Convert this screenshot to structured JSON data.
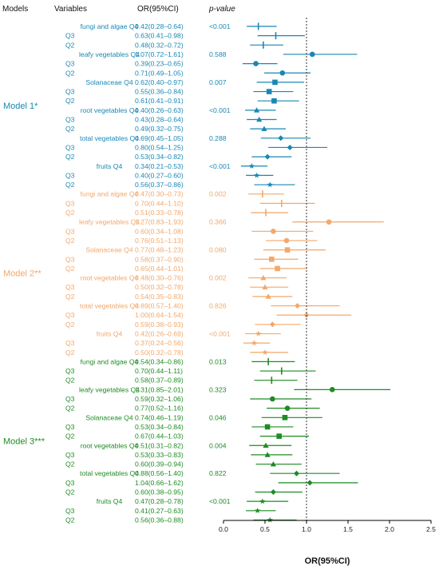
{
  "headers": {
    "models": "Models",
    "variables": "Variables",
    "or": "OR(95%CI)",
    "p": "p-value"
  },
  "chart_data": {
    "type": "forest",
    "xlabel": "OR(95%CI)",
    "xlim": [
      0,
      2.5
    ],
    "xticks": [
      "0.0",
      "0.5",
      "1.0",
      "1.5",
      "2.0",
      "2.5"
    ],
    "reference_line": 1.0,
    "models": [
      {
        "label": "Model 1*",
        "color": "#1a87b3",
        "rows": [
          {
            "label": "fungi and algae Q4",
            "or_text": "0.42(0.28–0.64)",
            "p": "<0.001",
            "or": 0.42,
            "lo": 0.28,
            "hi": 0.64,
            "marker": "line"
          },
          {
            "label": "Q3",
            "or_text": "0.63(0.41–0.98)",
            "p": "",
            "or": 0.63,
            "lo": 0.41,
            "hi": 0.98,
            "marker": "line"
          },
          {
            "label": "Q2",
            "or_text": "0.48(0.32–0.72)",
            "p": "",
            "or": 0.48,
            "lo": 0.32,
            "hi": 0.72,
            "marker": "line"
          },
          {
            "label": "leafy vegetables Q4",
            "or_text": "1.07(0.72–1.61)",
            "p": "0.588",
            "or": 1.07,
            "lo": 0.72,
            "hi": 1.61,
            "marker": "circle"
          },
          {
            "label": "Q3",
            "or_text": "0.39(0.23–0.65)",
            "p": "",
            "or": 0.39,
            "lo": 0.23,
            "hi": 0.65,
            "marker": "circle"
          },
          {
            "label": "Q2",
            "or_text": "0.71(0.49–1.05)",
            "p": "",
            "or": 0.71,
            "lo": 0.49,
            "hi": 1.05,
            "marker": "circle"
          },
          {
            "label": "Solanaceae Q4",
            "or_text": "0.62(0.40–0.97)",
            "p": "0.007",
            "or": 0.62,
            "lo": 0.4,
            "hi": 0.97,
            "marker": "square"
          },
          {
            "label": "Q3",
            "or_text": "0.55(0.36–0.84)",
            "p": "",
            "or": 0.55,
            "lo": 0.36,
            "hi": 0.84,
            "marker": "square"
          },
          {
            "label": "Q2",
            "or_text": "0.61(0.41–0.91)",
            "p": "",
            "or": 0.61,
            "lo": 0.41,
            "hi": 0.91,
            "marker": "square"
          },
          {
            "label": "root vegetables Q4",
            "or_text": "0.40(0.26–0.63)",
            "p": "<0.001",
            "or": 0.4,
            "lo": 0.26,
            "hi": 0.63,
            "marker": "triangle"
          },
          {
            "label": "Q3",
            "or_text": "0.43(0.28–0.64)",
            "p": "",
            "or": 0.43,
            "lo": 0.28,
            "hi": 0.64,
            "marker": "triangle"
          },
          {
            "label": "Q2",
            "or_text": "0.49(0.32–0.75)",
            "p": "",
            "or": 0.49,
            "lo": 0.32,
            "hi": 0.75,
            "marker": "triangle"
          },
          {
            "label": "total vegetables Q4",
            "or_text": "0.69(0.45–1.05)",
            "p": "0.288",
            "or": 0.69,
            "lo": 0.45,
            "hi": 1.05,
            "marker": "diamond"
          },
          {
            "label": "Q3",
            "or_text": "0.80(0.54–1.25)",
            "p": "",
            "or": 0.8,
            "lo": 0.54,
            "hi": 1.25,
            "marker": "diamond"
          },
          {
            "label": "Q2",
            "or_text": "0.53(0.34–0.82)",
            "p": "",
            "or": 0.53,
            "lo": 0.34,
            "hi": 0.82,
            "marker": "diamond"
          },
          {
            "label": "fruits Q4",
            "or_text": "0.34(0.21–0.53)",
            "p": "<0.001",
            "or": 0.34,
            "lo": 0.21,
            "hi": 0.53,
            "marker": "star"
          },
          {
            "label": "Q3",
            "or_text": "0.40(0.27–0.60)",
            "p": "",
            "or": 0.4,
            "lo": 0.27,
            "hi": 0.6,
            "marker": "star"
          },
          {
            "label": "Q2",
            "or_text": "0.56(0.37–0.86)",
            "p": "",
            "or": 0.56,
            "lo": 0.37,
            "hi": 0.86,
            "marker": "star"
          }
        ]
      },
      {
        "label": "Model 2**",
        "color": "#f2a86b",
        "rows": [
          {
            "label": "fungi and algae Q4",
            "or_text": "0.47(0.30–0.73)",
            "p": "0.002",
            "or": 0.47,
            "lo": 0.3,
            "hi": 0.73,
            "marker": "line"
          },
          {
            "label": "Q3",
            "or_text": "0.70(0.44–1.10)",
            "p": "",
            "or": 0.7,
            "lo": 0.44,
            "hi": 1.1,
            "marker": "line"
          },
          {
            "label": "Q2",
            "or_text": "0.51(0.33–0.78)",
            "p": "",
            "or": 0.51,
            "lo": 0.33,
            "hi": 0.78,
            "marker": "line"
          },
          {
            "label": "leafy vegetables Q4",
            "or_text": "1.27(0.83–1.93)",
            "p": "0.366",
            "or": 1.27,
            "lo": 0.83,
            "hi": 1.93,
            "marker": "circle"
          },
          {
            "label": "Q3",
            "or_text": "0.60(0.34–1.08)",
            "p": "",
            "or": 0.6,
            "lo": 0.34,
            "hi": 1.08,
            "marker": "circle"
          },
          {
            "label": "Q2",
            "or_text": "0.76(0.51–1.13)",
            "p": "",
            "or": 0.76,
            "lo": 0.51,
            "hi": 1.13,
            "marker": "circle"
          },
          {
            "label": "Solanaceae Q4",
            "or_text": "0.77(0.48–1.23)",
            "p": "0.080",
            "or": 0.77,
            "lo": 0.48,
            "hi": 1.23,
            "marker": "square"
          },
          {
            "label": "Q3",
            "or_text": "0.58(0.37–0.90)",
            "p": "",
            "or": 0.58,
            "lo": 0.37,
            "hi": 0.9,
            "marker": "square"
          },
          {
            "label": "Q2",
            "or_text": "0.65(0.44–1.01)",
            "p": "",
            "or": 0.65,
            "lo": 0.44,
            "hi": 1.01,
            "marker": "square"
          },
          {
            "label": "root vegetables Q4",
            "or_text": "0.48(0.30–0.76)",
            "p": "0.002",
            "or": 0.48,
            "lo": 0.3,
            "hi": 0.76,
            "marker": "triangle"
          },
          {
            "label": "Q3",
            "or_text": "0.50(0.32–0.78)",
            "p": "",
            "or": 0.5,
            "lo": 0.32,
            "hi": 0.78,
            "marker": "triangle"
          },
          {
            "label": "Q2",
            "or_text": "0.54(0.35–0.83)",
            "p": "",
            "or": 0.54,
            "lo": 0.35,
            "hi": 0.83,
            "marker": "triangle"
          },
          {
            "label": "total vegetables Q4",
            "or_text": "0.89(0.57–1.40)",
            "p": "0.826",
            "or": 0.89,
            "lo": 0.57,
            "hi": 1.4,
            "marker": "diamond"
          },
          {
            "label": "Q3",
            "or_text": "1.00(0.64–1.54)",
            "p": "",
            "or": 1.0,
            "lo": 0.64,
            "hi": 1.54,
            "marker": "diamond"
          },
          {
            "label": "Q2",
            "or_text": "0.59(0.38–0.93)",
            "p": "",
            "or": 0.59,
            "lo": 0.38,
            "hi": 0.93,
            "marker": "diamond"
          },
          {
            "label": "fruits Q4",
            "or_text": "0.42(0.26–0.69)",
            "p": "<0.001",
            "or": 0.42,
            "lo": 0.26,
            "hi": 0.69,
            "marker": "star"
          },
          {
            "label": "Q3",
            "or_text": "0.37(0.24–0.56)",
            "p": "",
            "or": 0.37,
            "lo": 0.24,
            "hi": 0.56,
            "marker": "star"
          },
          {
            "label": "Q2",
            "or_text": "0.50(0.32–0.78)",
            "p": "",
            "or": 0.5,
            "lo": 0.32,
            "hi": 0.78,
            "marker": "star"
          }
        ]
      },
      {
        "label": "Model 3***",
        "color": "#1e8c23",
        "rows": [
          {
            "label": "fungi and algae Q4",
            "or_text": "0.54(0.34–0.86)",
            "p": "0.013",
            "or": 0.54,
            "lo": 0.34,
            "hi": 0.86,
            "marker": "line"
          },
          {
            "label": "Q3",
            "or_text": "0.70(0.44–1.11)",
            "p": "",
            "or": 0.7,
            "lo": 0.44,
            "hi": 1.11,
            "marker": "line"
          },
          {
            "label": "Q2",
            "or_text": "0.58(0.37–0.89)",
            "p": "",
            "or": 0.58,
            "lo": 0.37,
            "hi": 0.89,
            "marker": "line"
          },
          {
            "label": "leafy vegetables Q4",
            "or_text": "1.31(0.85–2.01)",
            "p": "0.323",
            "or": 1.31,
            "lo": 0.85,
            "hi": 2.01,
            "marker": "circle"
          },
          {
            "label": "Q3",
            "or_text": "0.59(0.32–1.06)",
            "p": "",
            "or": 0.59,
            "lo": 0.32,
            "hi": 1.06,
            "marker": "circle"
          },
          {
            "label": "Q2",
            "or_text": "0.77(0.52–1.16)",
            "p": "",
            "or": 0.77,
            "lo": 0.52,
            "hi": 1.16,
            "marker": "circle"
          },
          {
            "label": "Solanaceae Q4",
            "or_text": "0.74(0.46–1.19)",
            "p": "0.046",
            "or": 0.74,
            "lo": 0.46,
            "hi": 1.19,
            "marker": "square"
          },
          {
            "label": "Q3",
            "or_text": "0.53(0.34–0.84)",
            "p": "",
            "or": 0.53,
            "lo": 0.34,
            "hi": 0.84,
            "marker": "square"
          },
          {
            "label": "Q2",
            "or_text": "0.67(0.44–1.03)",
            "p": "",
            "or": 0.67,
            "lo": 0.44,
            "hi": 1.03,
            "marker": "square"
          },
          {
            "label": "root vegetables Q4",
            "or_text": "0.51(0.31–0.82)",
            "p": "0.004",
            "or": 0.51,
            "lo": 0.31,
            "hi": 0.82,
            "marker": "triangle"
          },
          {
            "label": "Q3",
            "or_text": "0.53(0.33–0.83)",
            "p": "",
            "or": 0.53,
            "lo": 0.33,
            "hi": 0.83,
            "marker": "triangle"
          },
          {
            "label": "Q2",
            "or_text": "0.60(0.39–0.94)",
            "p": "",
            "or": 0.6,
            "lo": 0.39,
            "hi": 0.94,
            "marker": "triangle"
          },
          {
            "label": "total vegetables Q4",
            "or_text": "0.88(0.56–1.40)",
            "p": "0.822",
            "or": 0.88,
            "lo": 0.56,
            "hi": 1.4,
            "marker": "diamond"
          },
          {
            "label": "Q3",
            "or_text": "1.04(0.66–1.62)",
            "p": "",
            "or": 1.04,
            "lo": 0.66,
            "hi": 1.62,
            "marker": "diamond"
          },
          {
            "label": "Q2",
            "or_text": "0.60(0.38–0.95)",
            "p": "",
            "or": 0.6,
            "lo": 0.38,
            "hi": 0.95,
            "marker": "diamond"
          },
          {
            "label": "fruits Q4",
            "or_text": "0.47(0.28–0.78)",
            "p": "<0.001",
            "or": 0.47,
            "lo": 0.28,
            "hi": 0.78,
            "marker": "star"
          },
          {
            "label": "Q3",
            "or_text": "0.41(0.27–0.63)",
            "p": "",
            "or": 0.41,
            "lo": 0.27,
            "hi": 0.63,
            "marker": "star"
          },
          {
            "label": "Q2",
            "or_text": "0.56(0.36–0.88)",
            "p": "",
            "or": 0.56,
            "lo": 0.36,
            "hi": 0.88,
            "marker": "star"
          }
        ]
      }
    ]
  }
}
